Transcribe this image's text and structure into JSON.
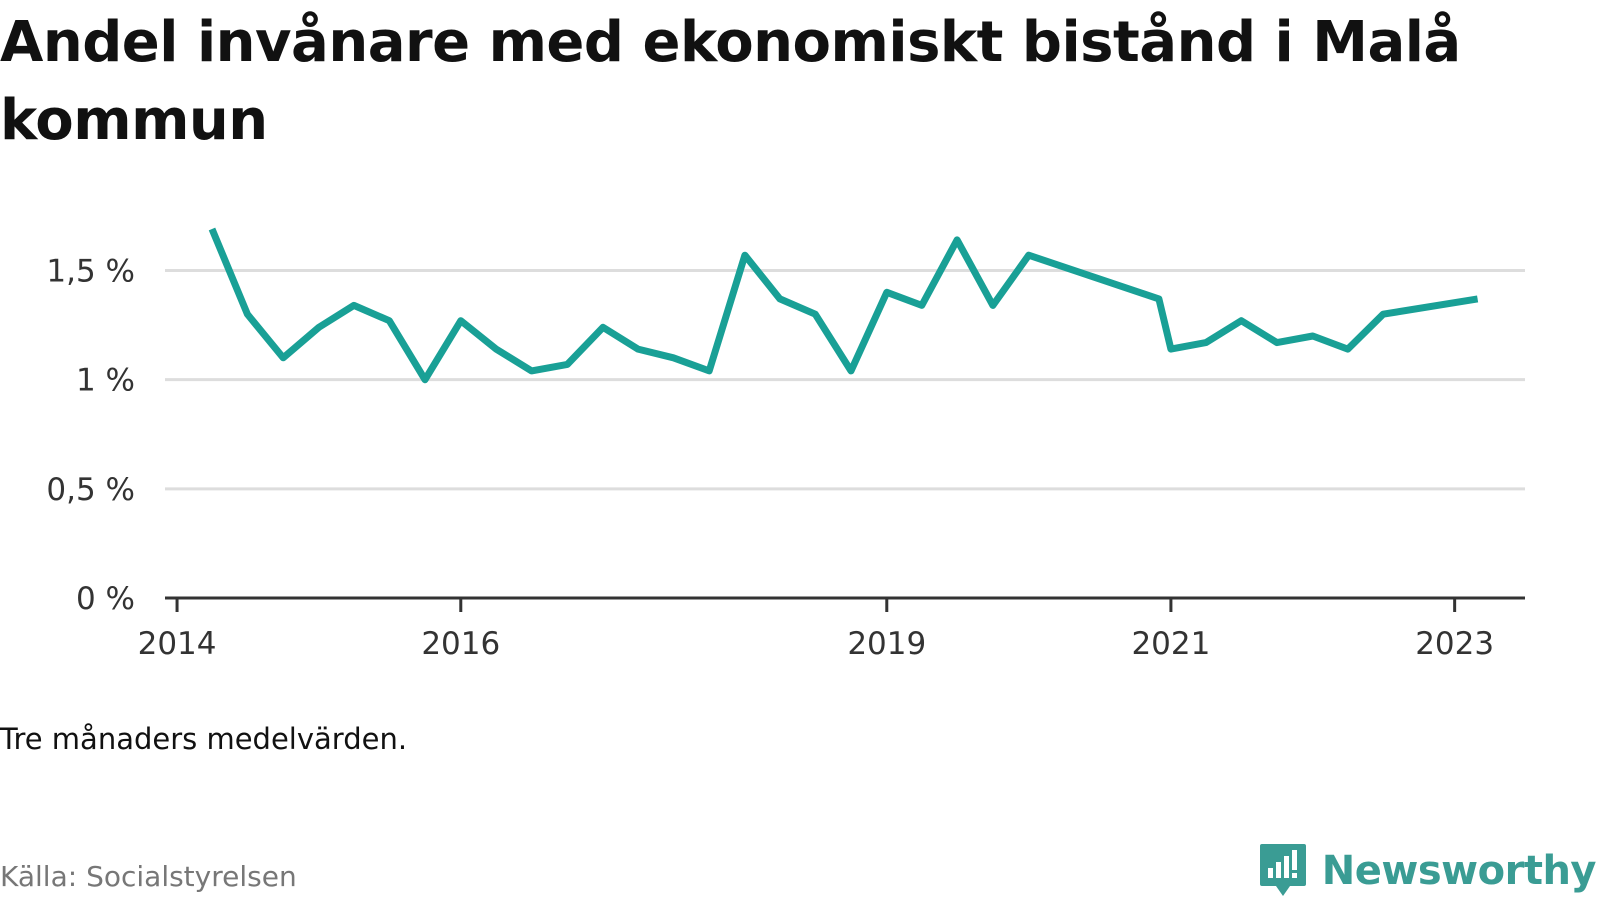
{
  "title": "Andel invånare med ekonomiskt bistånd i Malå kommun",
  "note": "Tre månaders medelvärden.",
  "source": "Källa: Socialstyrelsen",
  "brand": {
    "name": "Newsworthy",
    "icon": "newsworthy-logo-icon",
    "color": "#3a9c94"
  },
  "colors": {
    "line": "#19a096",
    "grid": "#dddddd",
    "axis": "#333333"
  },
  "chart_data": {
    "type": "line",
    "title": "Andel invånare med ekonomiskt bistånd i Malå kommun",
    "xlabel": "",
    "ylabel": "",
    "x_ticks": [
      "2014",
      "2016",
      "2019",
      "2021",
      "2023"
    ],
    "y_ticks": [
      "0 %",
      "0,5 %",
      "1 %",
      "1,5 %"
    ],
    "y_tick_values": [
      0,
      0.5,
      1,
      1.5
    ],
    "ylim": [
      0,
      1.8
    ],
    "xlim": [
      "2013-12-01",
      "2023-07-01"
    ],
    "grid": true,
    "legend": "none",
    "series": [
      {
        "color": "#19a096",
        "points": [
          [
            "2014-04-01",
            1.69
          ],
          [
            "2014-07-01",
            1.3
          ],
          [
            "2014-10-01",
            1.1
          ],
          [
            "2015-01-01",
            1.24
          ],
          [
            "2015-04-01",
            1.34
          ],
          [
            "2015-07-01",
            1.27
          ],
          [
            "2015-10-01",
            1.0
          ],
          [
            "2016-01-01",
            1.27
          ],
          [
            "2016-04-01",
            1.14
          ],
          [
            "2016-07-01",
            1.04
          ],
          [
            "2016-10-01",
            1.07
          ],
          [
            "2017-01-01",
            1.24
          ],
          [
            "2017-04-01",
            1.14
          ],
          [
            "2017-07-01",
            1.1
          ],
          [
            "2017-10-01",
            1.04
          ],
          [
            "2018-01-01",
            1.57
          ],
          [
            "2018-04-01",
            1.37
          ],
          [
            "2018-07-01",
            1.3
          ],
          [
            "2018-10-01",
            1.04
          ],
          [
            "2019-01-01",
            1.4
          ],
          [
            "2019-04-01",
            1.34
          ],
          [
            "2019-07-01",
            1.64
          ],
          [
            "2019-10-01",
            1.34
          ],
          [
            "2020-01-01",
            1.57
          ],
          [
            "2020-12-01",
            1.37
          ],
          [
            "2021-01-01",
            1.14
          ],
          [
            "2021-04-01",
            1.17
          ],
          [
            "2021-07-01",
            1.27
          ],
          [
            "2021-10-01",
            1.17
          ],
          [
            "2022-01-01",
            1.2
          ],
          [
            "2022-04-01",
            1.14
          ],
          [
            "2022-07-01",
            1.3
          ],
          [
            "2023-03-01",
            1.37
          ]
        ]
      }
    ]
  }
}
